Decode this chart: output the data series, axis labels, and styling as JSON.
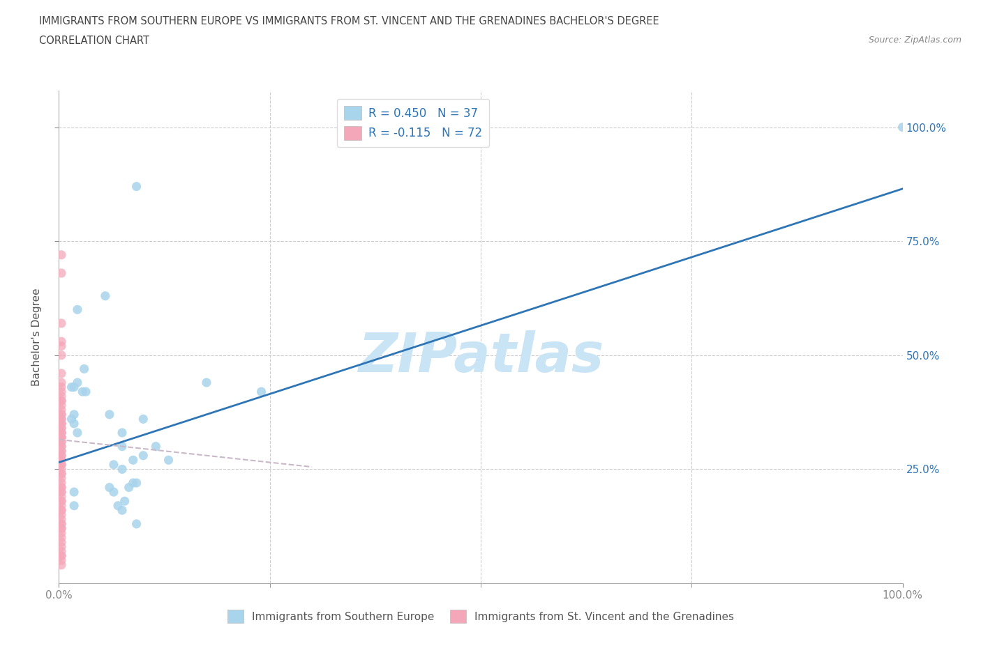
{
  "title_line1": "IMMIGRANTS FROM SOUTHERN EUROPE VS IMMIGRANTS FROM ST. VINCENT AND THE GRENADINES BACHELOR'S DEGREE",
  "title_line2": "CORRELATION CHART",
  "source": "Source: ZipAtlas.com",
  "ylabel": "Bachelor's Degree",
  "xlabel_blue": "Immigrants from Southern Europe",
  "xlabel_pink": "Immigrants from St. Vincent and the Grenadines",
  "watermark": "ZIPatlas",
  "legend_blue_R": "R = 0.450",
  "legend_blue_N": "N = 37",
  "legend_pink_R": "R = -0.115",
  "legend_pink_N": "N = 72",
  "blue_color": "#A8D4EC",
  "pink_color": "#F4A7B9",
  "trend_blue_color": "#2E75B6",
  "trend_pink_color": "#C8B8C8",
  "blue_x": [
    0.022,
    0.03,
    0.055,
    0.015,
    0.015,
    0.018,
    0.022,
    0.018,
    0.022,
    0.028,
    0.032,
    0.018,
    0.018,
    0.018,
    0.06,
    0.075,
    0.1,
    0.065,
    0.092,
    0.088,
    0.083,
    0.088,
    0.065,
    0.075,
    0.06,
    0.078,
    0.07,
    0.075,
    0.092,
    0.075,
    0.115,
    0.1,
    0.13,
    0.175,
    0.092,
    0.24,
    1.0
  ],
  "blue_y": [
    0.6,
    0.47,
    0.63,
    0.43,
    0.36,
    0.43,
    0.44,
    0.37,
    0.33,
    0.42,
    0.42,
    0.35,
    0.2,
    0.17,
    0.37,
    0.33,
    0.36,
    0.26,
    0.22,
    0.27,
    0.21,
    0.22,
    0.2,
    0.25,
    0.21,
    0.18,
    0.17,
    0.16,
    0.13,
    0.3,
    0.3,
    0.28,
    0.27,
    0.44,
    0.87,
    0.42,
    1.0
  ],
  "pink_x": [
    0.003,
    0.003,
    0.003,
    0.003,
    0.003,
    0.003,
    0.003,
    0.003,
    0.003,
    0.003,
    0.003,
    0.003,
    0.003,
    0.003,
    0.003,
    0.003,
    0.003,
    0.003,
    0.003,
    0.003,
    0.003,
    0.003,
    0.003,
    0.003,
    0.003,
    0.003,
    0.003,
    0.003,
    0.003,
    0.003,
    0.003,
    0.003,
    0.003,
    0.003,
    0.003,
    0.003,
    0.003,
    0.003,
    0.003,
    0.003,
    0.003,
    0.003,
    0.003,
    0.003,
    0.003,
    0.003,
    0.003,
    0.003,
    0.003,
    0.003,
    0.003,
    0.003,
    0.003,
    0.003,
    0.003,
    0.003,
    0.003,
    0.003,
    0.003,
    0.003,
    0.003,
    0.003,
    0.003,
    0.003,
    0.003,
    0.003,
    0.003,
    0.003,
    0.003,
    0.003,
    0.003,
    0.003
  ],
  "pink_y": [
    0.72,
    0.68,
    0.57,
    0.53,
    0.52,
    0.5,
    0.46,
    0.44,
    0.43,
    0.42,
    0.41,
    0.4,
    0.4,
    0.39,
    0.38,
    0.37,
    0.37,
    0.36,
    0.36,
    0.35,
    0.35,
    0.35,
    0.34,
    0.34,
    0.33,
    0.33,
    0.33,
    0.32,
    0.32,
    0.32,
    0.31,
    0.31,
    0.3,
    0.3,
    0.29,
    0.29,
    0.28,
    0.28,
    0.27,
    0.27,
    0.26,
    0.26,
    0.25,
    0.24,
    0.24,
    0.23,
    0.22,
    0.21,
    0.21,
    0.2,
    0.2,
    0.19,
    0.18,
    0.18,
    0.17,
    0.16,
    0.16,
    0.15,
    0.14,
    0.13,
    0.12,
    0.11,
    0.1,
    0.09,
    0.08,
    0.07,
    0.06,
    0.06,
    0.05,
    0.04,
    0.12,
    0.13
  ],
  "blue_trend_x": [
    0.0,
    1.0
  ],
  "blue_trend_y": [
    0.265,
    0.865
  ],
  "pink_trend_x": [
    0.0,
    0.3
  ],
  "pink_trend_y": [
    0.315,
    0.255
  ],
  "xlim": [
    0.0,
    1.0
  ],
  "ylim": [
    0.0,
    1.08
  ],
  "ytick_positions": [
    0.25,
    0.5,
    0.75,
    1.0
  ],
  "ytick_labels": [
    "25.0%",
    "50.0%",
    "75.0%",
    "100.0%"
  ],
  "xtick_positions": [
    0.0,
    1.0
  ],
  "xtick_labels": [
    "0.0%",
    "100.0%"
  ],
  "grid_color": "#CCCCCC",
  "background_color": "#FFFFFF",
  "tick_color": "#2E75B6",
  "title_color": "#555555",
  "watermark_color": "#C8E4F5"
}
